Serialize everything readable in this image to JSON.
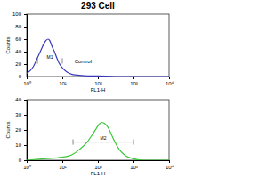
{
  "chart_data": [
    {
      "type": "line",
      "title": "293 Cell",
      "x_label": "FL1-H",
      "y_label": "Counts",
      "log": "x",
      "color": "#3a3ab8",
      "x": [
        1,
        1.5,
        2,
        2.5,
        3,
        3.5,
        4,
        4.5,
        5,
        6,
        7,
        8,
        10,
        13,
        16,
        20,
        30,
        50,
        100,
        300,
        1000,
        10000
      ],
      "values": [
        5,
        15,
        30,
        42,
        52,
        58,
        60,
        57,
        50,
        40,
        30,
        22,
        14,
        8,
        5,
        3,
        2,
        1,
        1,
        0,
        0,
        0
      ],
      "xlim": [
        1,
        10000
      ],
      "xticks": [
        {
          "value": 1,
          "label": "10⁰"
        },
        {
          "value": 10,
          "label": "10¹"
        },
        {
          "value": 100,
          "label": "10²"
        },
        {
          "value": 1000,
          "label": "10³"
        },
        {
          "value": 10000,
          "label": "10⁴"
        }
      ],
      "ylim": [
        0,
        100
      ],
      "yticks": [
        0,
        20,
        40,
        60,
        80,
        100
      ],
      "annotations": [
        {
          "text": "M1",
          "x": [
            2,
            10
          ],
          "y": 25
        },
        {
          "text": "Control",
          "x": 22,
          "y": 25
        }
      ]
    },
    {
      "type": "line",
      "x_label": "FL1-H",
      "y_label": "Counts",
      "log": "x",
      "color": "#3cc83c",
      "x": [
        1,
        3,
        10,
        20,
        30,
        50,
        70,
        90,
        110,
        130,
        160,
        200,
        250,
        300,
        400,
        600,
        1000,
        2000,
        10000
      ],
      "values": [
        0,
        1,
        2,
        4,
        7,
        12,
        17,
        21,
        24,
        25,
        24,
        21,
        16,
        12,
        7,
        3,
        1,
        0,
        0
      ],
      "xlim": [
        1,
        10000
      ],
      "xticks": [
        {
          "value": 1,
          "label": "10⁰"
        },
        {
          "value": 10,
          "label": "10¹"
        },
        {
          "value": 100,
          "label": "10²"
        },
        {
          "value": 1000,
          "label": "10³"
        },
        {
          "value": 10000,
          "label": "10⁴"
        }
      ],
      "ylim": [
        0,
        40
      ],
      "yticks": [
        0,
        10,
        20,
        30,
        40
      ],
      "annotations": [
        {
          "text": "M2",
          "x": [
            20,
            1000
          ],
          "y": 12
        }
      ]
    }
  ]
}
